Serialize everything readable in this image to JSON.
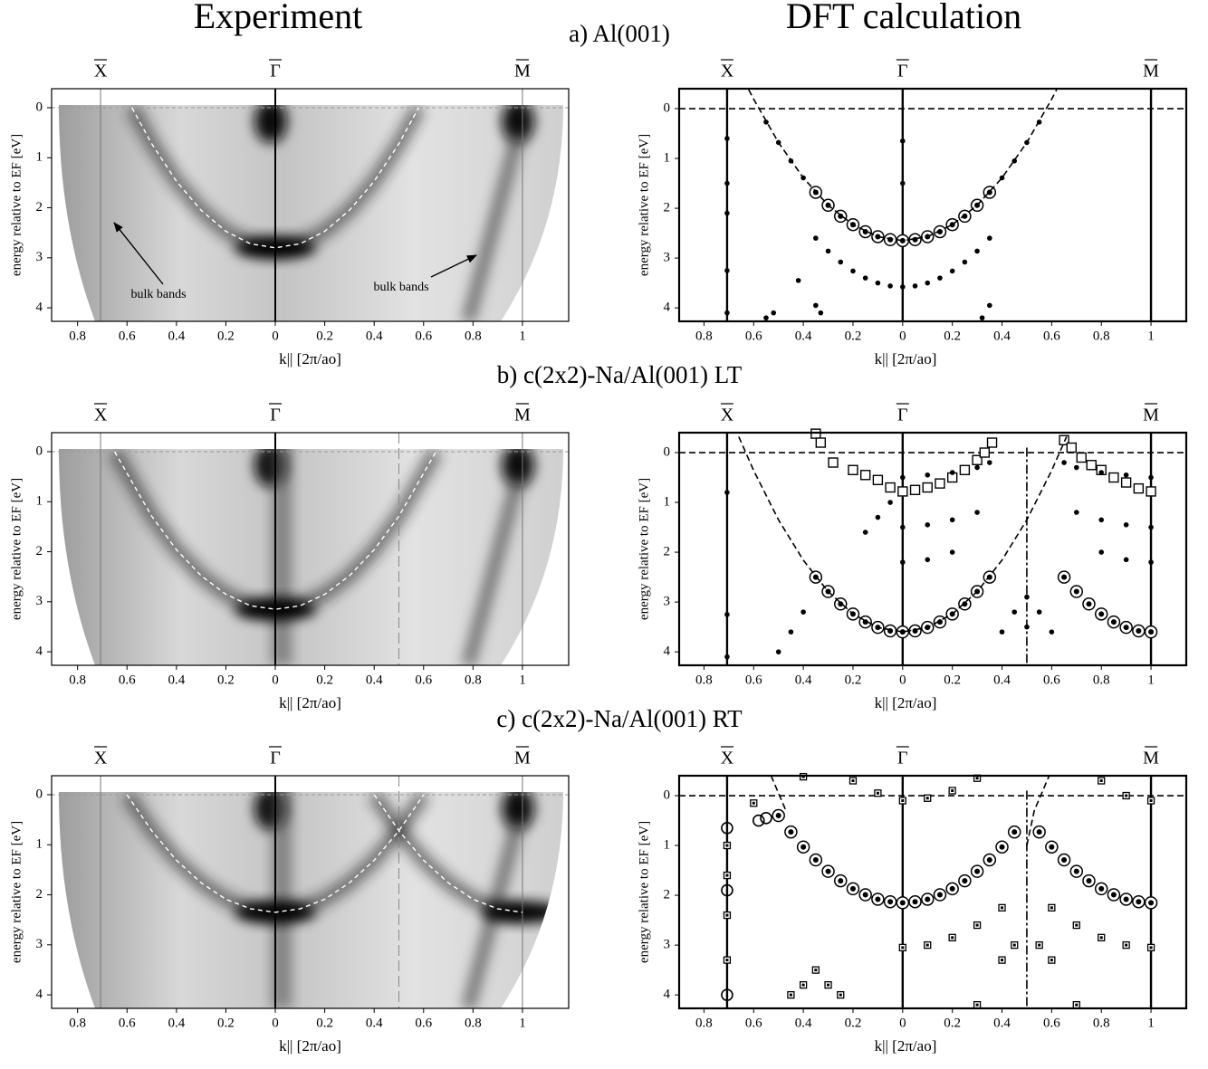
{
  "column_titles": [
    "Experiment",
    "DFT calculation"
  ],
  "panel_titles": [
    "a) Al(001)",
    "b) c(2x2)-Na/Al(001) LT",
    "c) c(2x2)-Na/Al(001) RT"
  ],
  "chart_data": [
    {
      "type": "arpes",
      "x_label": "k|| [2π/ao]",
      "y_label": "energy relative to EF [eV]",
      "annotations": [
        "bulk bands",
        "bulk bands"
      ],
      "symmetry_points": [
        {
          "value": -0.707,
          "label": "X"
        },
        {
          "value": 0,
          "label": "Γ"
        },
        {
          "value": 1,
          "label": "M"
        }
      ],
      "xlim": [
        -0.905,
        1.187
      ],
      "ylim": [
        -0.38,
        4.27
      ],
      "xticks": [
        {
          "value": -0.8,
          "label": "0.8"
        },
        {
          "value": -0.6,
          "label": "0.6"
        },
        {
          "value": -0.4,
          "label": "0.4"
        },
        {
          "value": -0.2,
          "label": "0.2"
        },
        0,
        0.2,
        0.4,
        0.6,
        0.8,
        1
      ],
      "yticks": [
        0,
        1,
        2,
        3,
        4
      ],
      "reference_lines": {
        "y": [
          0
        ]
      },
      "series": [
        {
          "marker": "dashed",
          "color": "#ffffff",
          "x": [
            -0.58,
            -0.5,
            -0.4,
            -0.3,
            -0.2,
            -0.1,
            0,
            0.1,
            0.2,
            0.3,
            0.4,
            0.5,
            0.58
          ],
          "values": [
            0,
            0.72,
            1.47,
            2.05,
            2.47,
            2.72,
            2.8,
            2.72,
            2.47,
            2.05,
            1.47,
            0.72,
            0
          ]
        }
      ]
    },
    {
      "type": "dft",
      "x_label": "k|| [2π/ao]",
      "y_label": "energy relative to EF [eV]",
      "symmetry_points": [
        {
          "value": -0.707,
          "label": "X"
        },
        {
          "value": 0,
          "label": "Γ"
        },
        {
          "value": 1,
          "label": "M"
        }
      ],
      "xlim": [
        -0.9,
        1.142
      ],
      "ylim": [
        -0.4,
        4.27
      ],
      "xticks": [
        {
          "value": -0.8,
          "label": "0.8"
        },
        {
          "value": -0.6,
          "label": "0.6"
        },
        {
          "value": -0.4,
          "label": "0.4"
        },
        {
          "value": -0.2,
          "label": "0.2"
        },
        0,
        0.2,
        0.4,
        0.6,
        0.8,
        1
      ],
      "yticks": [
        0,
        1,
        2,
        3,
        4
      ],
      "reference_lines": {
        "y": [
          0
        ]
      },
      "series": [
        {
          "marker": "circle",
          "color": "#000000",
          "x": [
            -0.35,
            -0.3,
            -0.25,
            -0.2,
            -0.15,
            -0.1,
            -0.05,
            0,
            0.05,
            0.1,
            0.15,
            0.2,
            0.25,
            0.3,
            0.35
          ],
          "values": [
            1.68,
            1.94,
            2.16,
            2.33,
            2.47,
            2.57,
            2.63,
            2.65,
            2.63,
            2.57,
            2.47,
            2.33,
            2.16,
            1.94,
            1.68
          ]
        },
        {
          "marker": "dot",
          "color": "#000000",
          "x": [
            -0.55,
            -0.5,
            -0.45,
            -0.4,
            0.4,
            0.45,
            0.5,
            0.55,
            -0.35,
            -0.3,
            -0.25,
            -0.2,
            -0.15,
            -0.1,
            -0.05,
            0,
            0.05,
            0.1,
            0.15,
            0.2,
            0.25,
            0.3,
            0.35,
            -0.707,
            -0.707,
            -0.707,
            -0.707,
            -0.707,
            0,
            0,
            -0.42,
            -0.35,
            -0.33,
            -0.52,
            -0.55,
            0.32,
            0.35
          ],
          "values": [
            0.27,
            0.68,
            1.05,
            1.39,
            1.39,
            1.05,
            0.68,
            0.27,
            2.6,
            2.86,
            3.08,
            3.26,
            3.4,
            3.5,
            3.56,
            3.58,
            3.56,
            3.5,
            3.4,
            3.26,
            3.08,
            2.86,
            2.6,
            0.6,
            1.5,
            2.1,
            3.25,
            4.1,
            0.65,
            1.5,
            3.45,
            3.95,
            4.1,
            4.1,
            4.2,
            4.2,
            3.95
          ]
        },
        {
          "marker": "dashed",
          "color": "#000000",
          "x": [
            -0.62,
            -0.6,
            -0.5,
            -0.4,
            -0.3,
            -0.2,
            -0.1,
            0,
            0.1,
            0.2,
            0.3,
            0.4,
            0.5,
            0.6,
            0.62
          ],
          "values": [
            -0.38,
            -0.19,
            0.68,
            1.39,
            1.94,
            2.33,
            2.57,
            2.65,
            2.57,
            2.33,
            1.94,
            1.39,
            0.68,
            -0.19,
            -0.38
          ]
        }
      ]
    },
    {
      "type": "arpes",
      "x_label": "k|| [2π/ao]",
      "y_label": "energy relative to EF [eV]",
      "symmetry_points": [
        {
          "value": -0.707,
          "label": "X"
        },
        {
          "value": 0,
          "label": "Γ"
        },
        {
          "value": 1,
          "label": "M"
        }
      ],
      "xlim": [
        -0.905,
        1.187
      ],
      "ylim": [
        -0.38,
        4.27
      ],
      "xticks": [
        {
          "value": -0.8,
          "label": "0.8"
        },
        {
          "value": -0.6,
          "label": "0.6"
        },
        {
          "value": -0.4,
          "label": "0.4"
        },
        {
          "value": -0.2,
          "label": "0.2"
        },
        0,
        0.2,
        0.4,
        0.6,
        0.8,
        1
      ],
      "yticks": [
        0,
        1,
        2,
        3,
        4
      ],
      "reference_lines": {
        "y": [
          0
        ],
        "x": [
          0.5
        ]
      },
      "series": [
        {
          "marker": "dashed",
          "color": "#ffffff",
          "x": [
            -0.65,
            -0.5,
            -0.4,
            -0.3,
            -0.2,
            -0.1,
            0,
            0.1,
            0.2,
            0.3,
            0.4,
            0.5,
            0.65
          ],
          "values": [
            0,
            1.29,
            1.96,
            2.48,
            2.85,
            3.08,
            3.15,
            3.08,
            2.85,
            2.48,
            1.96,
            1.29,
            0
          ]
        }
      ]
    },
    {
      "type": "dft",
      "x_label": "k|| [2π/ao]",
      "y_label": "energy relative to EF [eV]",
      "symmetry_points": [
        {
          "value": -0.707,
          "label": "X"
        },
        {
          "value": 0,
          "label": "Γ"
        },
        {
          "value": 1,
          "label": "M"
        }
      ],
      "xlim": [
        -0.9,
        1.142
      ],
      "ylim": [
        -0.4,
        4.27
      ],
      "xticks": [
        {
          "value": -0.8,
          "label": "0.8"
        },
        {
          "value": -0.6,
          "label": "0.6"
        },
        {
          "value": -0.4,
          "label": "0.4"
        },
        {
          "value": -0.2,
          "label": "0.2"
        },
        0,
        0.2,
        0.4,
        0.6,
        0.8,
        1
      ],
      "yticks": [
        0,
        1,
        2,
        3,
        4
      ],
      "reference_lines": {
        "y": [
          0
        ],
        "x": [
          0.5
        ]
      },
      "series": [
        {
          "marker": "square",
          "color": "#000000",
          "x": [
            -0.35,
            -0.33,
            -0.28,
            -0.2,
            -0.15,
            -0.1,
            -0.05,
            0,
            0.05,
            0.1,
            0.15,
            0.2,
            0.25,
            0.3,
            0.33,
            0.36,
            0.65,
            0.68,
            0.72,
            0.76,
            0.8,
            0.85,
            0.9,
            0.95,
            1.0
          ],
          "values": [
            -0.38,
            -0.2,
            0.2,
            0.35,
            0.45,
            0.55,
            0.7,
            0.78,
            0.75,
            0.7,
            0.62,
            0.5,
            0.35,
            0.15,
            0.0,
            -0.2,
            -0.25,
            -0.1,
            0.1,
            0.25,
            0.35,
            0.5,
            0.6,
            0.72,
            0.78
          ]
        },
        {
          "marker": "circle",
          "color": "#000000",
          "x": [
            -0.35,
            -0.3,
            -0.25,
            -0.2,
            -0.15,
            -0.1,
            -0.05,
            0,
            0.05,
            0.1,
            0.15,
            0.2,
            0.25,
            0.3,
            0.35,
            0.65,
            0.7,
            0.75,
            0.8,
            0.85,
            0.9,
            0.95,
            1.0
          ],
          "values": [
            2.5,
            2.79,
            3.04,
            3.24,
            3.4,
            3.51,
            3.58,
            3.6,
            3.58,
            3.51,
            3.4,
            3.24,
            3.04,
            2.79,
            2.5,
            2.5,
            2.79,
            3.04,
            3.24,
            3.4,
            3.51,
            3.58,
            3.6
          ]
        },
        {
          "marker": "dot",
          "color": "#000000",
          "x": [
            0,
            0.1,
            0.2,
            0.3,
            0.35,
            0.65,
            0.7,
            0.8,
            0.9,
            1.0,
            0,
            0.1,
            0.2,
            0.3,
            0.7,
            0.8,
            0.9,
            1.0,
            0,
            0.1,
            0.2,
            0.8,
            0.9,
            1.0,
            -0.707,
            -0.707,
            -0.707,
            0.5,
            0.5,
            0.45,
            0.55,
            0.6,
            0.4,
            -0.5,
            -0.45,
            -0.4,
            -0.1,
            -0.05,
            -0.15
          ],
          "values": [
            0.5,
            0.45,
            0.4,
            0.3,
            0.2,
            0.2,
            0.3,
            0.4,
            0.45,
            0.5,
            1.5,
            1.45,
            1.35,
            1.2,
            1.2,
            1.35,
            1.45,
            1.5,
            2.2,
            2.15,
            2.0,
            2.0,
            2.15,
            2.2,
            0.8,
            3.25,
            4.1,
            2.9,
            3.5,
            3.2,
            3.2,
            3.6,
            3.6,
            4.0,
            3.6,
            3.2,
            1.3,
            1.0,
            1.6
          ]
        },
        {
          "marker": "dashed",
          "color": "#000000",
          "x": [
            -0.66,
            -0.6,
            -0.5,
            -0.4,
            -0.3,
            -0.2,
            -0.1,
            0,
            0.1,
            0.2,
            0.3,
            0.4,
            0.5,
            0.6,
            0.66
          ],
          "values": [
            -0.32,
            0.36,
            1.35,
            2.16,
            2.79,
            3.24,
            3.51,
            3.6,
            3.51,
            3.24,
            2.79,
            2.16,
            1.35,
            0.36,
            -0.32
          ]
        }
      ]
    },
    {
      "type": "arpes",
      "x_label": "k|| [2π/ao]",
      "y_label": "energy relative to EF [eV]",
      "symmetry_points": [
        {
          "value": -0.707,
          "label": "X"
        },
        {
          "value": 0,
          "label": "Γ"
        },
        {
          "value": 1,
          "label": "M"
        }
      ],
      "xlim": [
        -0.905,
        1.187
      ],
      "ylim": [
        -0.38,
        4.27
      ],
      "xticks": [
        {
          "value": -0.8,
          "label": "0.8"
        },
        {
          "value": -0.6,
          "label": "0.6"
        },
        {
          "value": -0.4,
          "label": "0.4"
        },
        {
          "value": -0.2,
          "label": "0.2"
        },
        0,
        0.2,
        0.4,
        0.6,
        0.8,
        1
      ],
      "yticks": [
        0,
        1,
        2,
        3,
        4
      ],
      "reference_lines": {
        "y": [
          0
        ],
        "x": [
          0.5
        ]
      },
      "series": [
        {
          "marker": "dashed",
          "color": "#ffffff",
          "x": [
            -0.6,
            -0.5,
            -0.4,
            -0.3,
            -0.2,
            -0.1,
            0,
            0.1,
            0.2,
            0.3,
            0.4,
            0.5,
            0.6
          ],
          "values": [
            0,
            0.72,
            1.31,
            1.76,
            2.09,
            2.28,
            2.35,
            2.28,
            2.09,
            1.76,
            1.31,
            0.72,
            0
          ]
        },
        {
          "marker": "dashed",
          "color": "#ffffff",
          "x": [
            0.4,
            0.5,
            0.6,
            0.7,
            0.8,
            0.9,
            1.0
          ],
          "values": [
            0,
            0.72,
            1.31,
            1.76,
            2.09,
            2.28,
            2.35
          ]
        }
      ]
    },
    {
      "type": "dft",
      "x_label": "k|| [2π/ao]",
      "y_label": "energy relative to EF [eV]",
      "symmetry_points": [
        {
          "value": -0.707,
          "label": "X"
        },
        {
          "value": 0,
          "label": "Γ"
        },
        {
          "value": 1,
          "label": "M"
        }
      ],
      "xlim": [
        -0.9,
        1.142
      ],
      "ylim": [
        -0.4,
        4.27
      ],
      "xticks": [
        {
          "value": -0.8,
          "label": "0.8"
        },
        {
          "value": -0.6,
          "label": "0.6"
        },
        {
          "value": -0.4,
          "label": "0.4"
        },
        {
          "value": -0.2,
          "label": "0.2"
        },
        0,
        0.2,
        0.4,
        0.6,
        0.8,
        1
      ],
      "yticks": [
        0,
        1,
        2,
        3,
        4
      ],
      "reference_lines": {
        "y": [
          0
        ],
        "x": [
          0.5
        ]
      },
      "series": [
        {
          "marker": "circle",
          "color": "#000000",
          "x": [
            -0.5,
            -0.45,
            -0.4,
            -0.35,
            -0.3,
            -0.25,
            -0.2,
            -0.15,
            -0.1,
            -0.05,
            0,
            0.05,
            0.1,
            0.15,
            0.2,
            0.25,
            0.3,
            0.35,
            0.4,
            0.45,
            0.55,
            0.6,
            0.65,
            0.7,
            0.75,
            0.8,
            0.85,
            0.9,
            0.95,
            1.0
          ],
          "values": [
            0.4,
            0.73,
            1.03,
            1.29,
            1.52,
            1.71,
            1.87,
            1.99,
            2.08,
            2.13,
            2.15,
            2.13,
            2.08,
            1.99,
            1.87,
            1.71,
            1.52,
            1.29,
            1.03,
            0.73,
            0.73,
            1.03,
            1.29,
            1.52,
            1.71,
            1.87,
            1.99,
            2.08,
            2.13,
            2.15
          ]
        },
        {
          "marker": "ring",
          "color": "#000000",
          "x": [
            -0.707,
            -0.707,
            -0.707,
            -0.58,
            -0.55
          ],
          "values": [
            0.65,
            1.9,
            4.0,
            0.5,
            0.45
          ]
        },
        {
          "marker": "small-square",
          "color": "#000000",
          "x": [
            0,
            0.1,
            0.2,
            0.3,
            0.4,
            0.6,
            0.7,
            0.8,
            0.9,
            1.0,
            -0.6,
            -0.4,
            -0.2,
            -0.1,
            0,
            0.1,
            0.2,
            0.3,
            0.8,
            0.9,
            1.0,
            -0.45,
            -0.4,
            -0.35,
            -0.3,
            -0.25,
            0.3,
            0.4,
            0.45,
            0.55,
            0.6,
            0.7,
            -0.707,
            -0.707,
            -0.707,
            -0.707
          ],
          "values": [
            3.05,
            3.0,
            2.85,
            2.6,
            2.25,
            2.25,
            2.6,
            2.85,
            3.0,
            3.05,
            0.15,
            -0.38,
            -0.3,
            -0.05,
            0.1,
            0.05,
            -0.1,
            -0.35,
            -0.3,
            0.0,
            0.1,
            4.0,
            3.8,
            3.5,
            3.8,
            4.0,
            4.2,
            3.3,
            3.0,
            3.0,
            3.3,
            4.2,
            1.0,
            1.6,
            2.4,
            3.3
          ]
        },
        {
          "marker": "dashed",
          "color": "#000000",
          "x": [
            -0.53,
            -0.47,
            0,
            0.5,
            0.53,
            0.59
          ],
          "values": [
            -0.4,
            0.3,
            null,
            1.0,
            0.3,
            -0.4
          ]
        }
      ]
    }
  ]
}
